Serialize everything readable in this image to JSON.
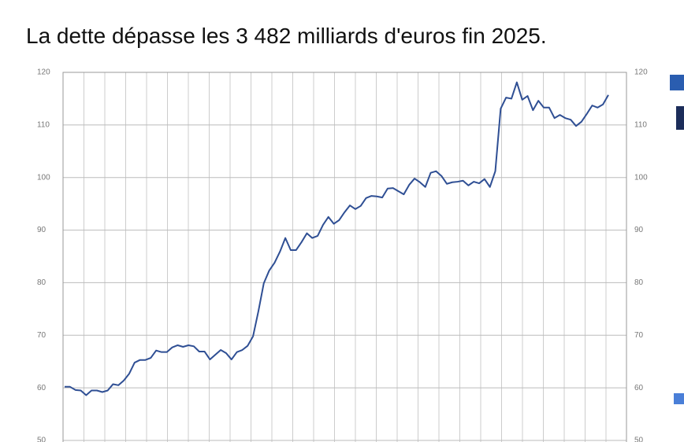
{
  "chart_data": {
    "type": "line",
    "title": "La dette dépasse les 3 482 milliards d'euros fin 2025.",
    "categories": [
      null,
      null,
      null,
      null,
      null,
      null,
      null,
      null,
      null,
      null,
      null,
      null,
      null,
      null,
      null,
      null,
      null,
      null,
      null,
      null,
      null,
      null,
      null,
      null,
      null,
      null,
      null,
      null,
      null,
      null,
      null,
      null,
      null,
      null,
      null,
      null,
      null,
      null,
      null,
      null,
      null,
      null,
      null,
      null,
      null,
      null,
      null,
      null,
      null,
      null,
      null,
      null,
      null,
      null,
      null,
      null,
      null,
      null,
      null,
      null,
      null,
      null,
      null,
      null,
      null,
      null,
      null,
      null,
      null,
      null,
      null,
      null,
      null,
      null,
      null,
      null,
      null,
      null,
      null,
      null,
      null,
      null,
      null,
      null,
      null,
      null,
      null,
      null,
      null,
      null,
      null,
      null,
      null,
      null,
      null,
      null,
      null,
      null,
      null,
      null,
      null,
      null
    ],
    "values": [
      60.2,
      60.2,
      59.6,
      59.5,
      58.6,
      59.5,
      59.5,
      59.2,
      59.5,
      60.7,
      60.5,
      61.4,
      62.7,
      64.8,
      65.3,
      65.3,
      65.7,
      67.1,
      66.8,
      66.8,
      67.7,
      68.1,
      67.8,
      68.1,
      67.9,
      66.9,
      66.9,
      65.4,
      66.3,
      67.2,
      66.6,
      65.4,
      66.8,
      67.2,
      68.0,
      69.8,
      74.6,
      79.9,
      82.3,
      83.8,
      85.9,
      88.5,
      86.2,
      86.2,
      87.7,
      89.4,
      88.5,
      88.9,
      91.0,
      92.5,
      91.2,
      91.9,
      93.4,
      94.7,
      94.0,
      94.6,
      96.1,
      96.5,
      96.4,
      96.2,
      97.9,
      98.0,
      97.4,
      96.8,
      98.6,
      99.8,
      99.1,
      98.2,
      100.9,
      101.2,
      100.3,
      98.8,
      99.1,
      99.2,
      99.4,
      98.5,
      99.2,
      98.9,
      99.7,
      98.2,
      101.2,
      113.1,
      115.2,
      115.0,
      118.1,
      114.8,
      115.5,
      112.8,
      114.6,
      113.3,
      113.3,
      111.3,
      111.9,
      111.3,
      111.0,
      109.8,
      110.6,
      112.1,
      113.7,
      113.3,
      113.9,
      115.7
    ],
    "color": "#2f4f94",
    "ylim": [
      50,
      120
    ],
    "yticks": [
      50,
      60,
      70,
      80,
      90,
      100,
      110,
      120
    ],
    "grid": true
  }
}
